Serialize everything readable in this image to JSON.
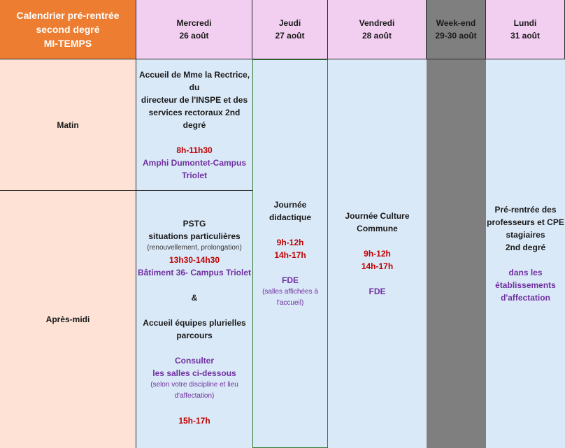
{
  "colors": {
    "title_bg": "#ed7d31",
    "header_bg": "#f2cef0",
    "rowlabel_bg": "#fde2d5",
    "content_bg": "#dae9f8",
    "weekend_bg": "#7f7f7f",
    "red_text": "#c00000",
    "purple_text": "#7030a0",
    "green_border": "#2e7d32"
  },
  "title": {
    "line1": "Calendrier pré-rentrée",
    "line2": "second degré",
    "line3": "MI-TEMPS"
  },
  "days": [
    {
      "name": "Mercredi",
      "date": "26 août"
    },
    {
      "name": "Jeudi",
      "date": "27 août"
    },
    {
      "name": "Vendredi",
      "date": "28 août"
    },
    {
      "name": "Week-end",
      "date": "29-30 août"
    },
    {
      "name": "Lundi",
      "date": "31 août"
    }
  ],
  "rows": {
    "morning": "Matin",
    "afternoon": "Après-midi"
  },
  "wed_morning": {
    "line1": "Accueil de Mme la Rectrice, du",
    "line2": "directeur de l'INSPE et des",
    "line3": "services rectoraux 2nd degré",
    "time": "8h-11h30",
    "place1": "Amphi Dumontet-Campus",
    "place2": "Triolet"
  },
  "wed_afternoon": {
    "pstg": "PSTG",
    "situations": "situations particulières",
    "situations_note": "(renouvellement, prolongation)",
    "time1": "13h30-14h30",
    "place": "Bâtiment 36- Campus Triolet",
    "amp": "&",
    "accueil1": "Accueil équipes plurielles",
    "accueil2": "parcours",
    "consult1": "Consulter",
    "consult2": "les salles ci-dessous",
    "consult_note1": "(selon votre discipline et lieu",
    "consult_note2": "d'affectation)",
    "time2": "15h-17h"
  },
  "thursday": {
    "line1": "Journée",
    "line2": "didactique",
    "time1": "9h-12h",
    "time2": "14h-17h",
    "place": "FDE",
    "note1": "(salles affichées à",
    "note2": "l'accueil)"
  },
  "friday": {
    "line1": "Journée Culture",
    "line2": "Commune",
    "time1": "9h-12h",
    "time2": "14h-17h",
    "place": "FDE"
  },
  "monday": {
    "line1": "Pré-rentrée des",
    "line2": "professeurs et CPE",
    "line3": "stagiaires",
    "line4": "2nd degré",
    "place1": "dans les",
    "place2": "établissements",
    "place3": "d'affectation"
  }
}
